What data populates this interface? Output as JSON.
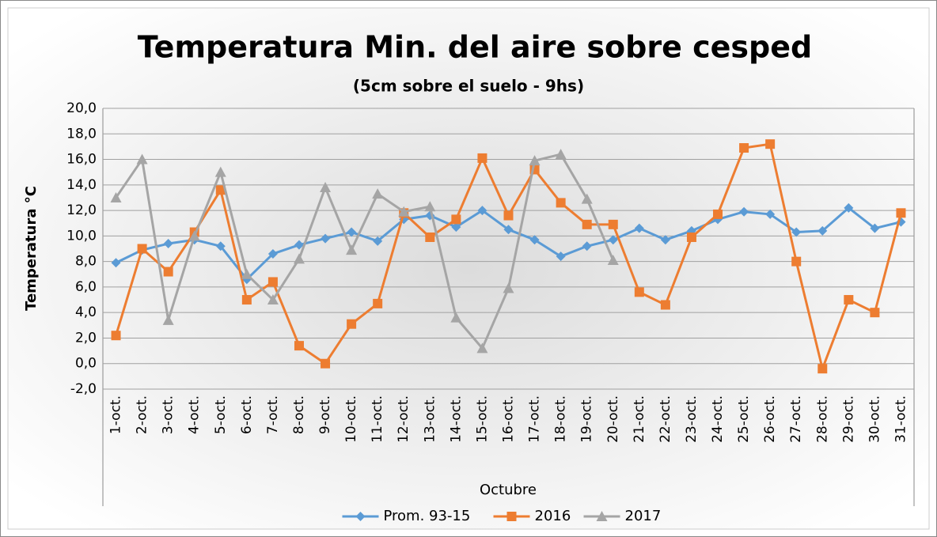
{
  "chart_data": {
    "type": "line",
    "title": "Temperatura Min. del aire sobre cesped",
    "subtitle": "(5cm sobre el suelo - 9hs)",
    "x_label": "Octubre",
    "y_label": "Temperatura °C",
    "categories": [
      "1-oct.",
      "2-oct.",
      "3-oct.",
      "4-oct.",
      "5-oct.",
      "6-oct.",
      "7-oct.",
      "8-oct.",
      "9-oct.",
      "10-oct.",
      "11-oct.",
      "12-oct.",
      "13-oct.",
      "14-oct.",
      "15-oct.",
      "16-oct.",
      "17-oct.",
      "18-oct.",
      "19-oct.",
      "20-oct.",
      "21-oct.",
      "22-oct.",
      "23-oct.",
      "24-oct.",
      "25-oct.",
      "26-oct.",
      "27-oct.",
      "28-oct.",
      "29-oct.",
      "30-oct.",
      "31-oct."
    ],
    "series": [
      {
        "name": "Prom. 93-15",
        "color": "#5b9bd5",
        "marker": "diamond",
        "values": [
          7.9,
          8.9,
          9.4,
          9.7,
          9.2,
          6.6,
          8.6,
          9.3,
          9.8,
          10.3,
          9.6,
          11.3,
          11.6,
          10.7,
          12.0,
          10.5,
          9.7,
          8.4,
          9.2,
          9.7,
          10.6,
          9.7,
          10.4,
          11.3,
          11.9,
          11.7,
          10.3,
          10.4,
          12.2,
          10.6,
          11.1
        ]
      },
      {
        "name": "2016",
        "color": "#ed7d31",
        "marker": "square",
        "values": [
          2.2,
          9.0,
          7.2,
          10.3,
          13.6,
          5.0,
          6.4,
          1.4,
          0.0,
          3.1,
          4.7,
          11.8,
          9.9,
          11.3,
          16.1,
          11.6,
          15.2,
          12.6,
          10.9,
          10.9,
          5.6,
          4.6,
          9.9,
          11.7,
          16.9,
          17.2,
          8.0,
          -0.4,
          5.0,
          4.0,
          11.8
        ]
      },
      {
        "name": "2017",
        "color": "#a5a5a5",
        "marker": "triangle",
        "values": [
          13.0,
          16.0,
          3.4,
          10.0,
          15.0,
          7.0,
          5.0,
          8.2,
          13.8,
          8.9,
          13.3,
          11.9,
          12.3,
          3.6,
          1.2,
          5.9,
          15.9,
          16.4,
          12.9,
          8.1,
          null,
          null,
          null,
          null,
          null,
          null,
          null,
          null,
          null,
          null,
          null
        ]
      }
    ],
    "ylim": [
      -2,
      20
    ],
    "yticks": [
      {
        "value": -2,
        "label": "-2,0"
      },
      {
        "value": 0,
        "label": "0,0"
      },
      {
        "value": 2,
        "label": "2,0"
      },
      {
        "value": 4,
        "label": "4,0"
      },
      {
        "value": 6,
        "label": "6,0"
      },
      {
        "value": 8,
        "label": "8,0"
      },
      {
        "value": 10,
        "label": "10,0"
      },
      {
        "value": 12,
        "label": "12,0"
      },
      {
        "value": 14,
        "label": "14,0"
      },
      {
        "value": 16,
        "label": "16,0"
      },
      {
        "value": 18,
        "label": "18,0"
      },
      {
        "value": 20,
        "label": "20,0"
      }
    ],
    "grid": true,
    "legend": "bottom"
  }
}
